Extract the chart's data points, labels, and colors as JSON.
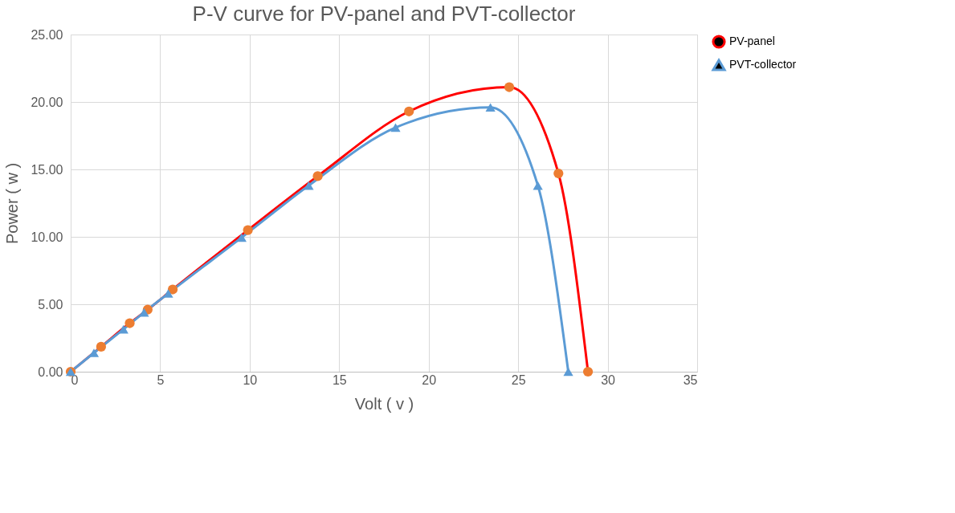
{
  "chart_data": {
    "type": "line",
    "title": "P-V curve for PV-panel and PVT-collector",
    "xlabel": "Volt ( v )",
    "ylabel": "Power ( w )",
    "xlim": [
      0,
      35
    ],
    "xticks": [
      0,
      5,
      10,
      15,
      20,
      25,
      30,
      35
    ],
    "ylim": [
      0,
      25
    ],
    "yticks": [
      {
        "value": 0,
        "label": "0.00"
      },
      {
        "value": 5,
        "label": "5.00"
      },
      {
        "value": 10,
        "label": "10.00"
      },
      {
        "value": 15,
        "label": "15.00"
      },
      {
        "value": 20,
        "label": "20.00"
      },
      {
        "value": 25,
        "label": "25.00"
      }
    ],
    "grid": true,
    "legend": "right",
    "line_style": "solid",
    "series": [
      {
        "name": "PV-panel",
        "color": "#ff0000",
        "marker": "circle",
        "colors": [
          "#ed7d31",
          "#ed7d31",
          "#ed7d31",
          "#ed7d31",
          "#ed7d31",
          "#ed7d31",
          "#ed7d31",
          "#ed7d31",
          "#ed7d31",
          "#ed7d31",
          "#ed7d31"
        ],
        "x": [
          0,
          1.7,
          3.3,
          4.3,
          5.7,
          9.9,
          13.8,
          18.9,
          24.5,
          27.25,
          28.9
        ],
        "values": [
          0,
          1.85,
          3.6,
          4.6,
          6.1,
          10.5,
          14.5,
          19.3,
          21.1,
          14.7,
          0
        ]
      },
      {
        "name": "PVT-collector",
        "color": "#5b9bd5",
        "marker": "triangle",
        "x": [
          0,
          1.3,
          2.95,
          4.1,
          5.45,
          9.55,
          13.3,
          18.15,
          23.45,
          26.1,
          27.8
        ],
        "values": [
          0,
          1.4,
          3.15,
          4.4,
          5.8,
          9.95,
          13.8,
          18.1,
          19.6,
          13.8,
          0
        ]
      }
    ]
  }
}
